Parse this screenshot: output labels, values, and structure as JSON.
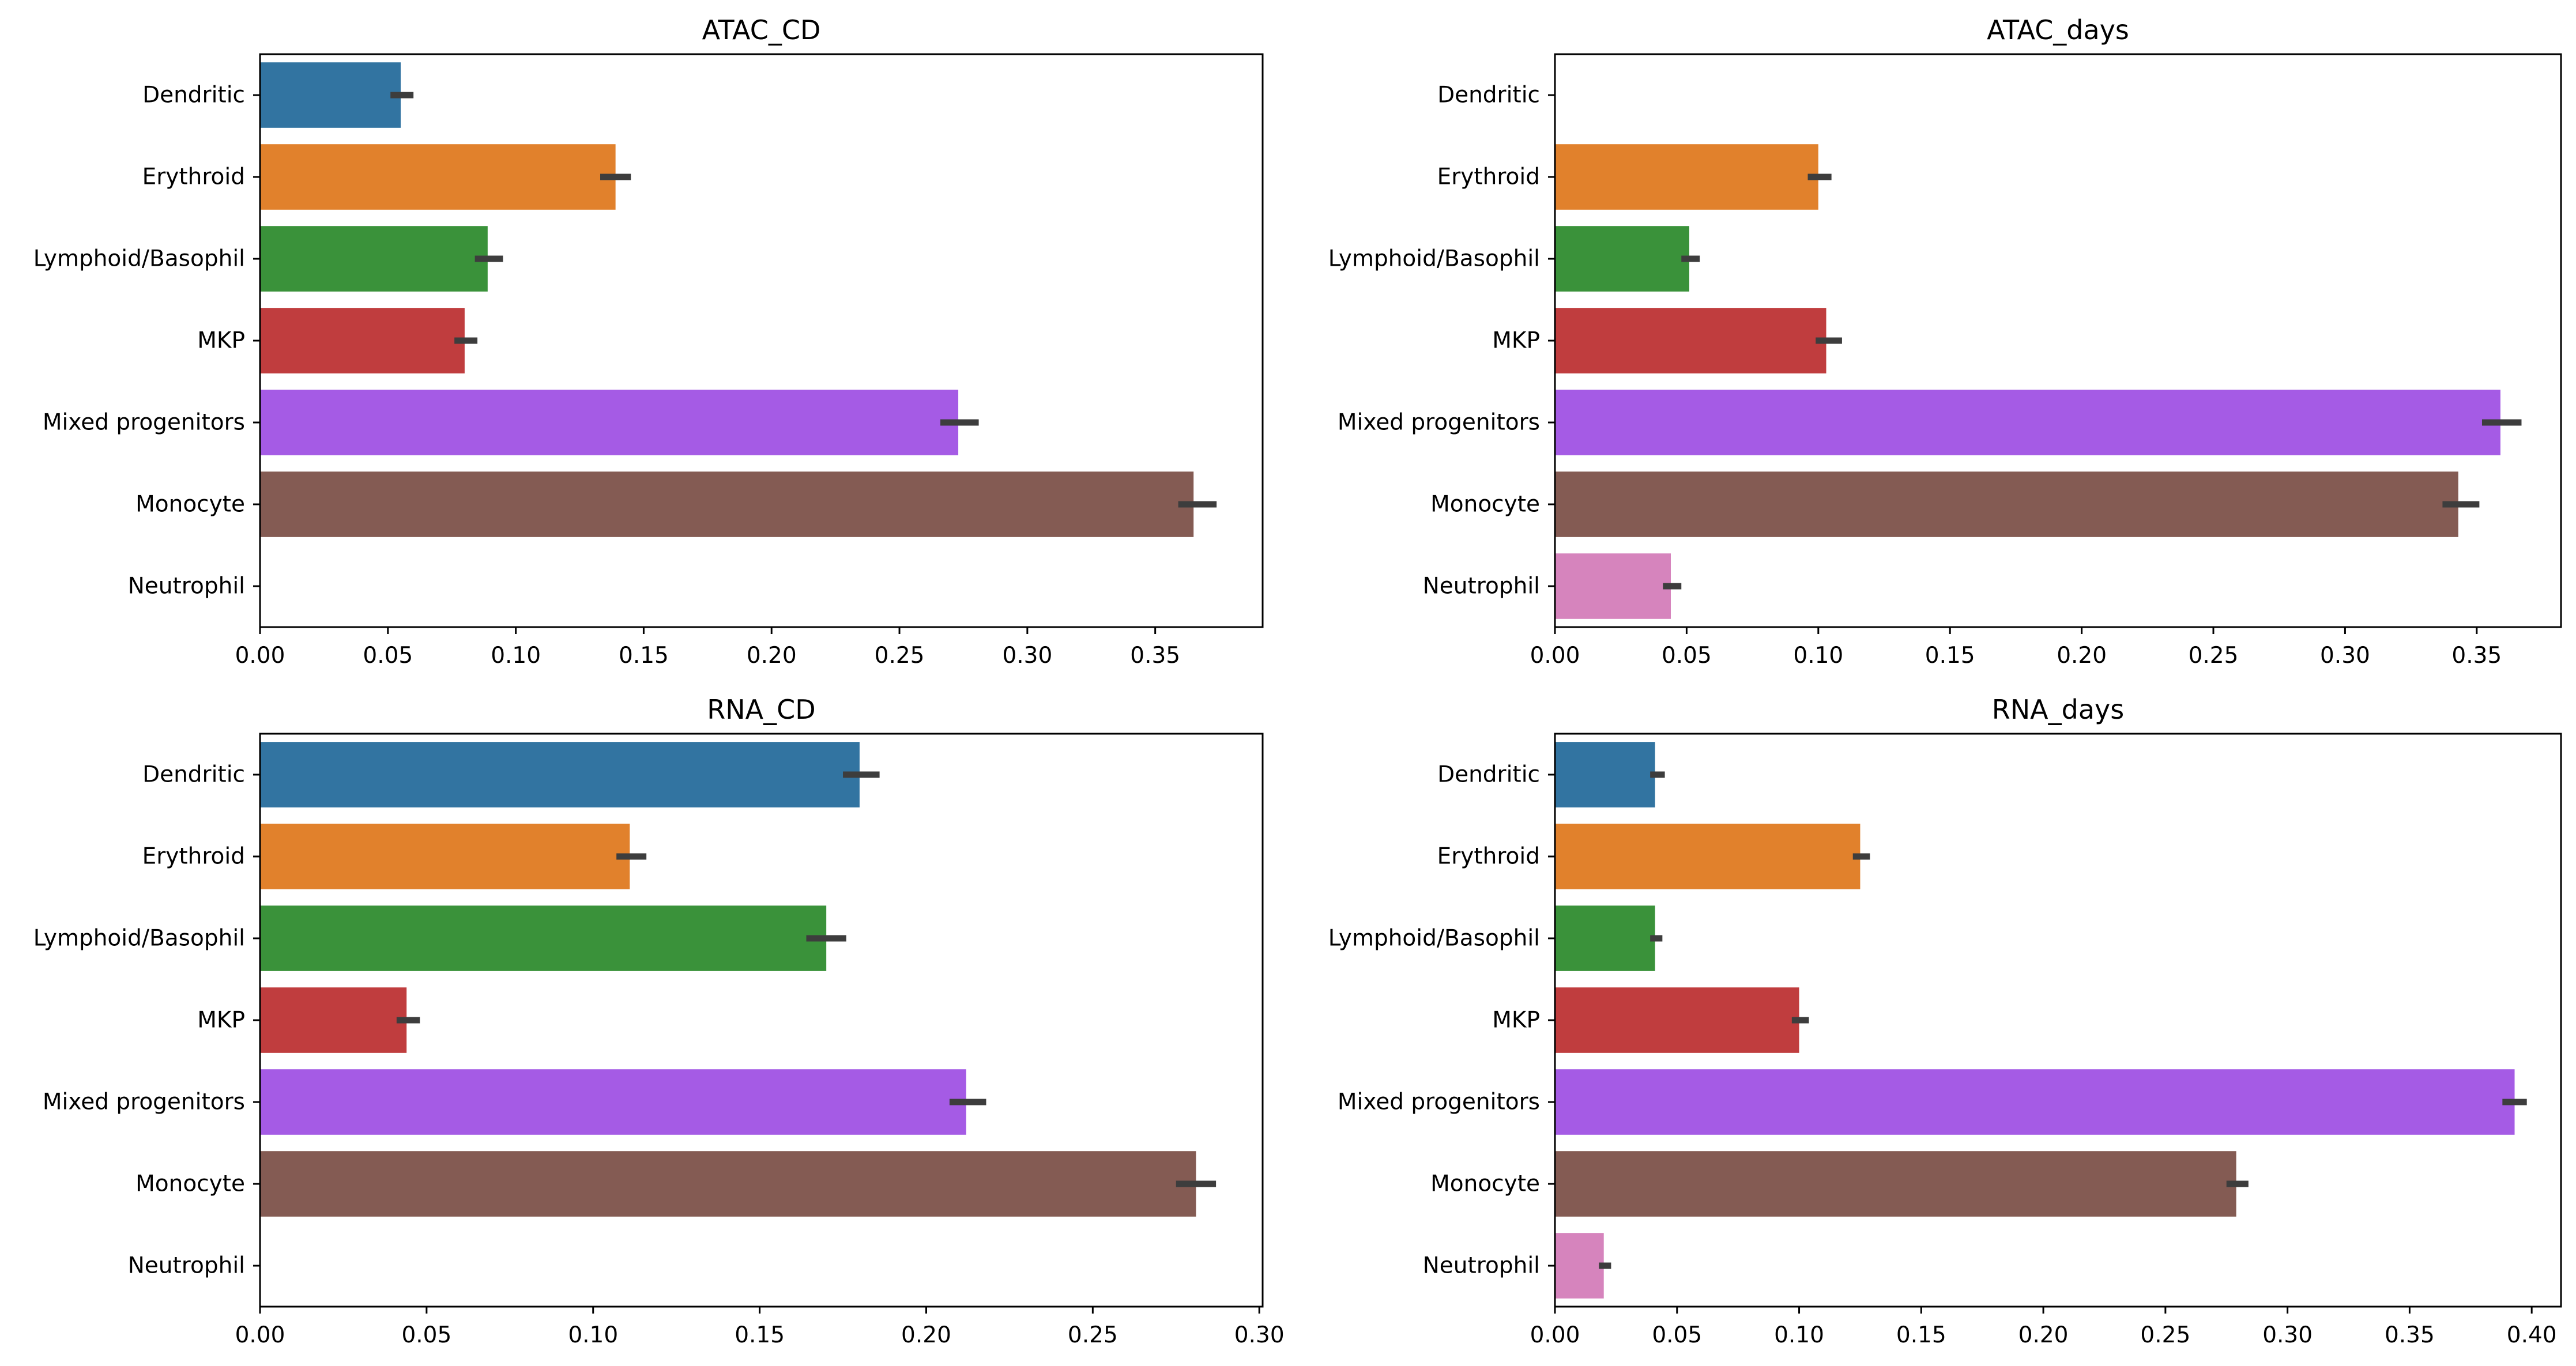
{
  "chart_data": [
    {
      "type": "bar",
      "orientation": "horizontal",
      "title": "ATAC_CD",
      "xlabel": "",
      "ylabel": "",
      "categories": [
        "Dendritic",
        "Erythroid",
        "Lymphoid/Basophil",
        "MKP",
        "Mixed progenitors",
        "Monocyte",
        "Neutrophil"
      ],
      "values": [
        0.055,
        0.139,
        0.089,
        0.08,
        0.273,
        0.365,
        null
      ],
      "error_low": [
        0.051,
        0.133,
        0.084,
        0.076,
        0.266,
        0.359,
        null
      ],
      "error_high": [
        0.06,
        0.145,
        0.095,
        0.085,
        0.281,
        0.374,
        null
      ],
      "xlim": [
        0,
        0.392
      ],
      "xticks": [
        0.0,
        0.05,
        0.1,
        0.15,
        0.2,
        0.25,
        0.3,
        0.35
      ],
      "xtick_labels": [
        "0.00",
        "0.05",
        "0.10",
        "0.15",
        "0.20",
        "0.25",
        "0.30",
        "0.35"
      ],
      "grid": false
    },
    {
      "type": "bar",
      "orientation": "horizontal",
      "title": "ATAC_days",
      "xlabel": "",
      "ylabel": "",
      "categories": [
        "Dendritic",
        "Erythroid",
        "Lymphoid/Basophil",
        "MKP",
        "Mixed progenitors",
        "Monocyte",
        "Neutrophil"
      ],
      "values": [
        null,
        0.1,
        0.051,
        0.103,
        0.359,
        0.343,
        0.044
      ],
      "error_low": [
        null,
        0.096,
        0.048,
        0.099,
        0.352,
        0.337,
        0.041
      ],
      "error_high": [
        null,
        0.105,
        0.055,
        0.109,
        0.367,
        0.351,
        0.048
      ],
      "xlim": [
        0,
        0.382
      ],
      "xticks": [
        0.0,
        0.05,
        0.1,
        0.15,
        0.2,
        0.25,
        0.3,
        0.35
      ],
      "xtick_labels": [
        "0.00",
        "0.05",
        "0.10",
        "0.15",
        "0.20",
        "0.25",
        "0.30",
        "0.35"
      ],
      "grid": false
    },
    {
      "type": "bar",
      "orientation": "horizontal",
      "title": "RNA_CD",
      "xlabel": "",
      "ylabel": "",
      "categories": [
        "Dendritic",
        "Erythroid",
        "Lymphoid/Basophil",
        "MKP",
        "Mixed progenitors",
        "Monocyte",
        "Neutrophil"
      ],
      "values": [
        0.18,
        0.111,
        0.17,
        0.044,
        0.212,
        0.281,
        null
      ],
      "error_low": [
        0.175,
        0.107,
        0.164,
        0.041,
        0.207,
        0.275,
        null
      ],
      "error_high": [
        0.186,
        0.116,
        0.176,
        0.048,
        0.218,
        0.287,
        null
      ],
      "xlim": [
        0,
        0.301
      ],
      "xticks": [
        0.0,
        0.05,
        0.1,
        0.15,
        0.2,
        0.25,
        0.3
      ],
      "xtick_labels": [
        "0.00",
        "0.05",
        "0.10",
        "0.15",
        "0.20",
        "0.25",
        "0.30"
      ],
      "grid": false
    },
    {
      "type": "bar",
      "orientation": "horizontal",
      "title": "RNA_days",
      "xlabel": "",
      "ylabel": "",
      "categories": [
        "Dendritic",
        "Erythroid",
        "Lymphoid/Basophil",
        "MKP",
        "Mixed progenitors",
        "Monocyte",
        "Neutrophil"
      ],
      "values": [
        0.041,
        0.125,
        0.041,
        0.1,
        0.393,
        0.279,
        0.02
      ],
      "error_low": [
        0.039,
        0.122,
        0.039,
        0.097,
        0.388,
        0.275,
        0.018
      ],
      "error_high": [
        0.045,
        0.129,
        0.044,
        0.104,
        0.398,
        0.284,
        0.023
      ],
      "xlim": [
        0,
        0.412
      ],
      "xticks": [
        0.0,
        0.05,
        0.1,
        0.15,
        0.2,
        0.25,
        0.3,
        0.35,
        0.4
      ],
      "xtick_labels": [
        "0.00",
        "0.05",
        "0.10",
        "0.15",
        "0.20",
        "0.25",
        "0.30",
        "0.35",
        "0.40"
      ],
      "grid": false
    }
  ],
  "colors": {
    "Dendritic": "#3274a1",
    "Erythroid": "#e1812c",
    "Lymphoid/Basophil": "#3a923a",
    "MKP": "#c03d3e",
    "Mixed progenitors": "#a55be5",
    "Monocyte": "#845b53",
    "Neutrophil": "#d684bd",
    "error_bar": "#3d3d3d"
  }
}
